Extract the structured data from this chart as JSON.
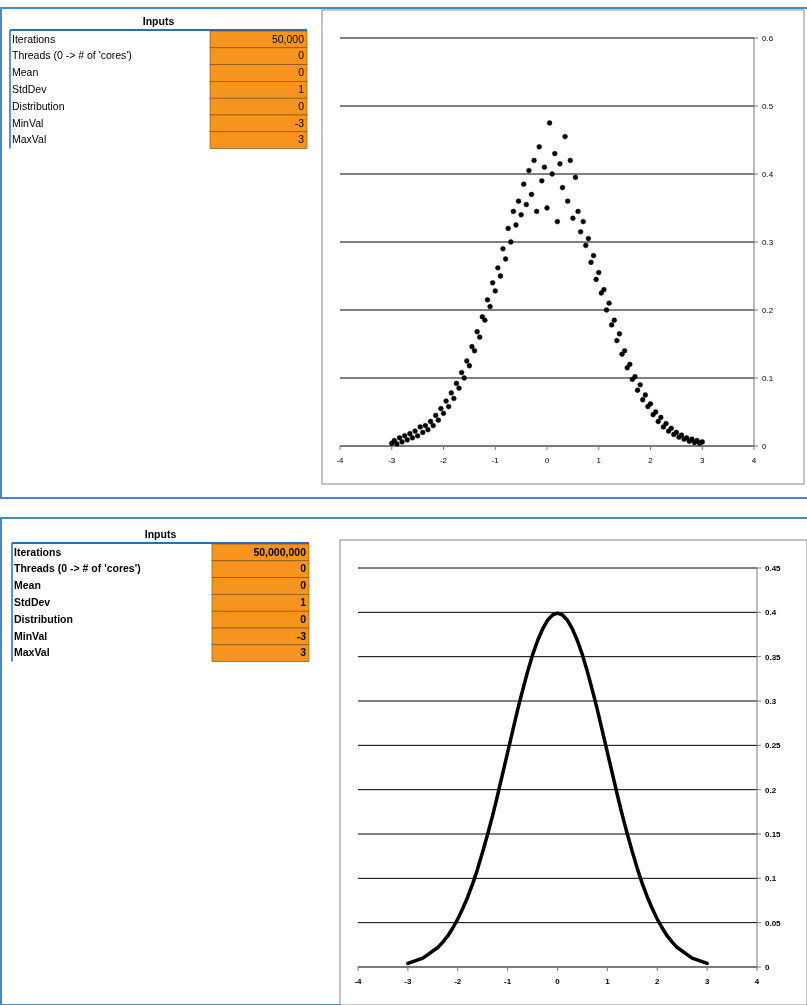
{
  "chart_data": [
    {
      "type": "other",
      "title": "Inputs",
      "annotations": [
        "Iterations",
        "50,000",
        "Threads (0 -> # of 'cores')",
        "0",
        "Mean",
        "0",
        "StdDev",
        "1",
        "Distribution",
        "0",
        "MinVal",
        "-3",
        "MaxVal",
        "3"
      ]
    },
    {
      "type": "scatter",
      "marker": "circle",
      "grid": "y",
      "xlim": [
        -4,
        4
      ],
      "xticks": [
        -4,
        -3,
        -2,
        -1,
        0,
        1,
        2,
        3,
        4
      ],
      "ylim": [
        0,
        0.6
      ],
      "yticks": [
        0,
        0.1,
        0.2,
        0.3,
        0.4,
        0.5,
        0.6
      ],
      "series": [
        {
          "color": "#000000",
          "x": [
            -3.0,
            -2.95,
            -2.9,
            -2.85,
            -2.8,
            -2.75,
            -2.7,
            -2.65,
            -2.6,
            -2.55,
            -2.5,
            -2.45,
            -2.4,
            -2.35,
            -2.3,
            -2.25,
            -2.2,
            -2.15,
            -2.1,
            -2.05,
            -2.0,
            -1.95,
            -1.9,
            -1.85,
            -1.8,
            -1.75,
            -1.7,
            -1.65,
            -1.6,
            -1.55,
            -1.5,
            -1.45,
            -1.4,
            -1.35,
            -1.3,
            -1.25,
            -1.2,
            -1.15,
            -1.1,
            -1.05,
            -1.0,
            -0.95,
            -0.9,
            -0.85,
            -0.8,
            -0.75,
            -0.7,
            -0.65,
            -0.6,
            -0.55,
            -0.5,
            -0.45,
            -0.4,
            -0.35,
            -0.3,
            -0.25,
            -0.2,
            -0.15,
            -0.1,
            -0.05,
            0,
            0.05,
            0.1,
            0.15,
            0.2,
            0.25,
            0.3,
            0.35,
            0.4,
            0.45,
            0.5,
            0.55,
            0.6,
            0.65,
            0.7,
            0.75,
            0.8,
            0.85,
            0.9,
            0.95,
            1.0,
            1.05,
            1.1,
            1.15,
            1.2,
            1.25,
            1.3,
            1.35,
            1.4,
            1.45,
            1.5,
            1.55,
            1.6,
            1.65,
            1.7,
            1.75,
            1.8,
            1.85,
            1.9,
            1.95,
            2.0,
            2.05,
            2.1,
            2.15,
            2.2,
            2.25,
            2.3,
            2.35,
            2.4,
            2.45,
            2.5,
            2.55,
            2.6,
            2.65,
            2.7,
            2.75,
            2.8,
            2.85,
            2.9,
            2.95,
            3.0
          ],
          "values": [
            0.004,
            0.008,
            0.003,
            0.012,
            0.006,
            0.015,
            0.009,
            0.018,
            0.012,
            0.022,
            0.015,
            0.028,
            0.02,
            0.03,
            0.024,
            0.036,
            0.03,
            0.045,
            0.038,
            0.055,
            0.048,
            0.066,
            0.058,
            0.078,
            0.07,
            0.092,
            0.085,
            0.108,
            0.1,
            0.125,
            0.118,
            0.146,
            0.14,
            0.168,
            0.16,
            0.19,
            0.185,
            0.215,
            0.205,
            0.24,
            0.228,
            0.262,
            0.25,
            0.29,
            0.275,
            0.32,
            0.3,
            0.345,
            0.325,
            0.36,
            0.34,
            0.385,
            0.355,
            0.405,
            0.37,
            0.42,
            0.345,
            0.44,
            0.39,
            0.41,
            0.35,
            0.475,
            0.4,
            0.43,
            0.33,
            0.415,
            0.38,
            0.455,
            0.36,
            0.42,
            0.335,
            0.395,
            0.345,
            0.315,
            0.33,
            0.295,
            0.305,
            0.27,
            0.28,
            0.245,
            0.255,
            0.225,
            0.23,
            0.2,
            0.21,
            0.178,
            0.185,
            0.155,
            0.165,
            0.135,
            0.14,
            0.115,
            0.12,
            0.098,
            0.102,
            0.082,
            0.09,
            0.068,
            0.075,
            0.058,
            0.062,
            0.046,
            0.05,
            0.036,
            0.042,
            0.028,
            0.033,
            0.022,
            0.026,
            0.017,
            0.02,
            0.013,
            0.016,
            0.01,
            0.012,
            0.007,
            0.01,
            0.005,
            0.008,
            0.004,
            0.006
          ]
        }
      ]
    },
    {
      "type": "other",
      "title": "Inputs",
      "annotations": [
        "Iterations",
        "50,000,000",
        "Threads (0 -> # of 'cores')",
        "0",
        "Mean",
        "0",
        "StdDev",
        "1",
        "Distribution",
        "0",
        "MinVal",
        "-3",
        "MaxVal",
        "3"
      ]
    },
    {
      "type": "line",
      "grid": "y",
      "xlim": [
        -4,
        4
      ],
      "xticks": [
        -4,
        -3,
        -2,
        -1,
        0,
        1,
        2,
        3,
        4
      ],
      "ylim": [
        0,
        0.45
      ],
      "yticks": [
        0,
        0.05,
        0.1,
        0.15,
        0.2,
        0.25,
        0.3,
        0.35,
        0.4,
        0.45
      ],
      "series": [
        {
          "color": "#000000",
          "x": [
            -3.0,
            -2.9,
            -2.8,
            -2.7,
            -2.6,
            -2.5,
            -2.4,
            -2.3,
            -2.2,
            -2.1,
            -2.0,
            -1.9,
            -1.8,
            -1.7,
            -1.6,
            -1.5,
            -1.4,
            -1.3,
            -1.2,
            -1.1,
            -1.0,
            -0.9,
            -0.8,
            -0.7,
            -0.6,
            -0.5,
            -0.4,
            -0.3,
            -0.2,
            -0.1,
            0,
            0.1,
            0.2,
            0.3,
            0.4,
            0.5,
            0.6,
            0.7,
            0.8,
            0.9,
            1.0,
            1.1,
            1.2,
            1.3,
            1.4,
            1.5,
            1.6,
            1.7,
            1.8,
            1.9,
            2.0,
            2.1,
            2.2,
            2.3,
            2.4,
            2.5,
            2.6,
            2.7,
            2.8,
            2.9,
            3.0
          ],
          "values": [
            0.004,
            0.006,
            0.008,
            0.01,
            0.014,
            0.018,
            0.022,
            0.028,
            0.035,
            0.044,
            0.054,
            0.066,
            0.079,
            0.094,
            0.111,
            0.13,
            0.15,
            0.171,
            0.194,
            0.218,
            0.242,
            0.266,
            0.29,
            0.312,
            0.333,
            0.352,
            0.368,
            0.381,
            0.391,
            0.397,
            0.399,
            0.397,
            0.391,
            0.381,
            0.368,
            0.352,
            0.333,
            0.312,
            0.29,
            0.266,
            0.242,
            0.218,
            0.194,
            0.171,
            0.15,
            0.13,
            0.111,
            0.094,
            0.079,
            0.066,
            0.054,
            0.044,
            0.035,
            0.028,
            0.022,
            0.018,
            0.014,
            0.01,
            0.008,
            0.006,
            0.004
          ]
        }
      ]
    }
  ]
}
